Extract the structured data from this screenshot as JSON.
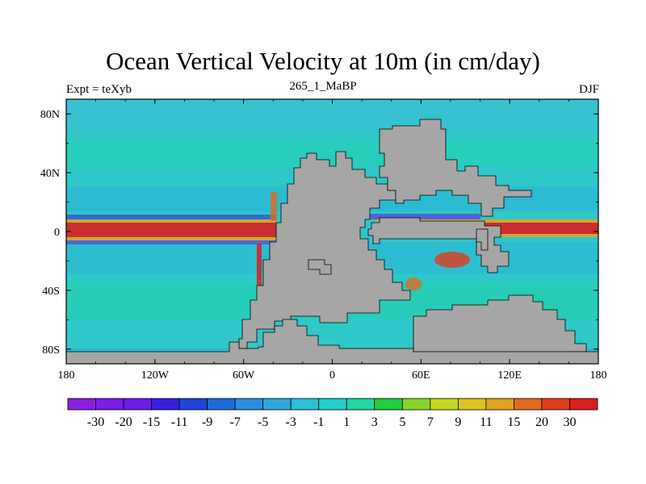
{
  "title": "Ocean Vertical Velocity at 10m (in cm/day)",
  "subtitle_left": "Expt = teXyb",
  "subtitle_center": "265_1_MaBP",
  "subtitle_right": "DJF",
  "x_ticks": [
    "180",
    "120W",
    "60W",
    "0",
    "60E",
    "120E",
    "180"
  ],
  "y_ticks": [
    "80N",
    "40N",
    "0",
    "40S",
    "80S"
  ],
  "colorbar": {
    "labels": [
      "-30",
      "-20",
      "-15",
      "-11",
      "-9",
      "-7",
      "-5",
      "-3",
      "-1",
      "1",
      "3",
      "5",
      "7",
      "9",
      "11",
      "15",
      "20",
      "30"
    ],
    "colors": [
      "#8a1ee0",
      "#7a1ee8",
      "#6a1ee6",
      "#3a1ee0",
      "#1e46d8",
      "#1e6ad8",
      "#2a8ee0",
      "#2ea8dc",
      "#26c2d6",
      "#22d0c8",
      "#1ed8a0",
      "#20cc40",
      "#8ad428",
      "#c6d81e",
      "#dcc41e",
      "#e0a41e",
      "#e06a1e",
      "#e03c1e",
      "#dc1e1e"
    ]
  },
  "colors": {
    "land": "#a6a6a6",
    "ocean_base": "#2ec8c8",
    "coast": "#000000"
  }
}
